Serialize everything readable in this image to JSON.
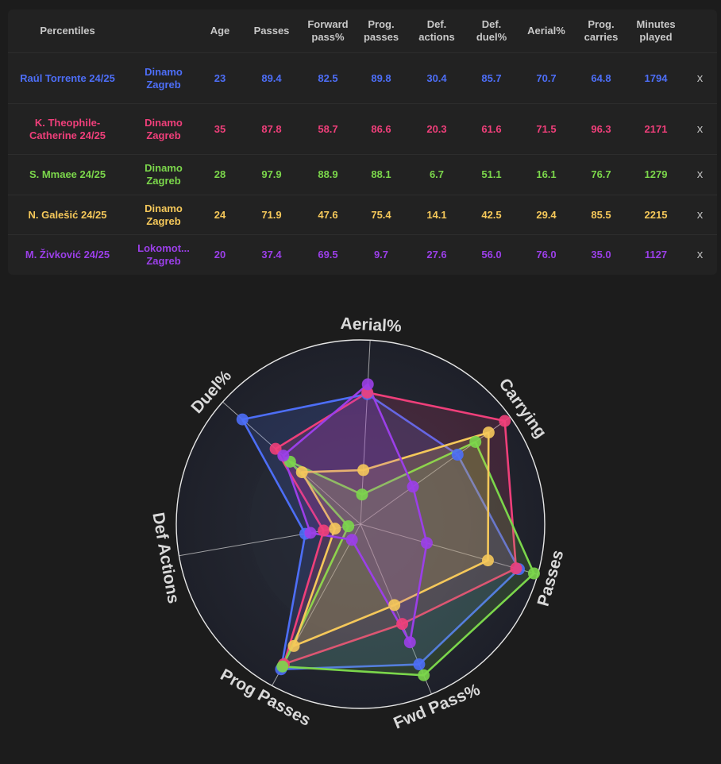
{
  "table": {
    "headers": [
      "Percentiles",
      "",
      "Age",
      "Passes",
      "Forward\npass%",
      "Prog.\npasses",
      "Def.\nactions",
      "Def.\nduel%",
      "Aerial%",
      "Prog.\ncarries",
      "Minutes\nplayed",
      ""
    ],
    "remove_label": "x",
    "rows": [
      {
        "player": "Raúl Torrente 24/25",
        "team": "Dinamo Zagreb",
        "color": "#4d6ef7",
        "values": [
          "23",
          "89.4",
          "82.5",
          "89.8",
          "30.4",
          "85.7",
          "70.7",
          "64.8",
          "1794"
        ]
      },
      {
        "player": "K. Theophile-Catherine 24/25",
        "team": "Dinamo Zagreb",
        "color": "#ef3f7a",
        "values": [
          "35",
          "87.8",
          "58.7",
          "86.6",
          "20.3",
          "61.6",
          "71.5",
          "96.3",
          "2171"
        ]
      },
      {
        "player": "S. Mmaee 24/25",
        "team": "Dinamo Zagreb",
        "color": "#7bd64b",
        "values": [
          "28",
          "97.9",
          "88.9",
          "88.1",
          "6.7",
          "51.1",
          "16.1",
          "76.7",
          "1279"
        ]
      },
      {
        "player": "N. Galešić 24/25",
        "team": "Dinamo Zagreb",
        "color": "#f5c85a",
        "values": [
          "24",
          "71.9",
          "47.6",
          "75.4",
          "14.1",
          "42.5",
          "29.4",
          "85.5",
          "2215"
        ]
      },
      {
        "player": "M. Živković 24/25",
        "team": "Lokomot... Zagreb",
        "color": "#9b3fe8",
        "values": [
          "20",
          "37.4",
          "69.5",
          "9.7",
          "27.6",
          "56.0",
          "76.0",
          "35.0",
          "1127"
        ]
      }
    ]
  },
  "chart_data": {
    "type": "radar",
    "axes": [
      "Aerial%",
      "Carrying",
      "Passes",
      "Fwd Pass%",
      "Prog Passes",
      "Def Actions",
      "Duel%"
    ],
    "range": [
      0,
      100
    ],
    "series": [
      {
        "name": "Raúl Torrente 24/25",
        "color": "#4d6ef7",
        "values": [
          70.7,
          64.8,
          89.4,
          82.5,
          89.8,
          30.4,
          85.7
        ]
      },
      {
        "name": "K. Theophile-Catherine 24/25",
        "color": "#ef3f7a",
        "values": [
          71.5,
          96.3,
          87.8,
          58.7,
          86.6,
          20.3,
          61.6
        ]
      },
      {
        "name": "S. Mmaee 24/25",
        "color": "#7bd64b",
        "values": [
          16.1,
          76.7,
          97.9,
          88.9,
          88.1,
          6.7,
          51.1
        ]
      },
      {
        "name": "N. Galešić 24/25",
        "color": "#f5c85a",
        "values": [
          29.4,
          85.5,
          71.9,
          47.6,
          75.4,
          14.1,
          42.5
        ]
      },
      {
        "name": "M. Živković 24/25",
        "color": "#9b3fe8",
        "values": [
          76.0,
          35.0,
          37.4,
          69.5,
          9.7,
          27.6,
          56.0
        ]
      }
    ]
  }
}
